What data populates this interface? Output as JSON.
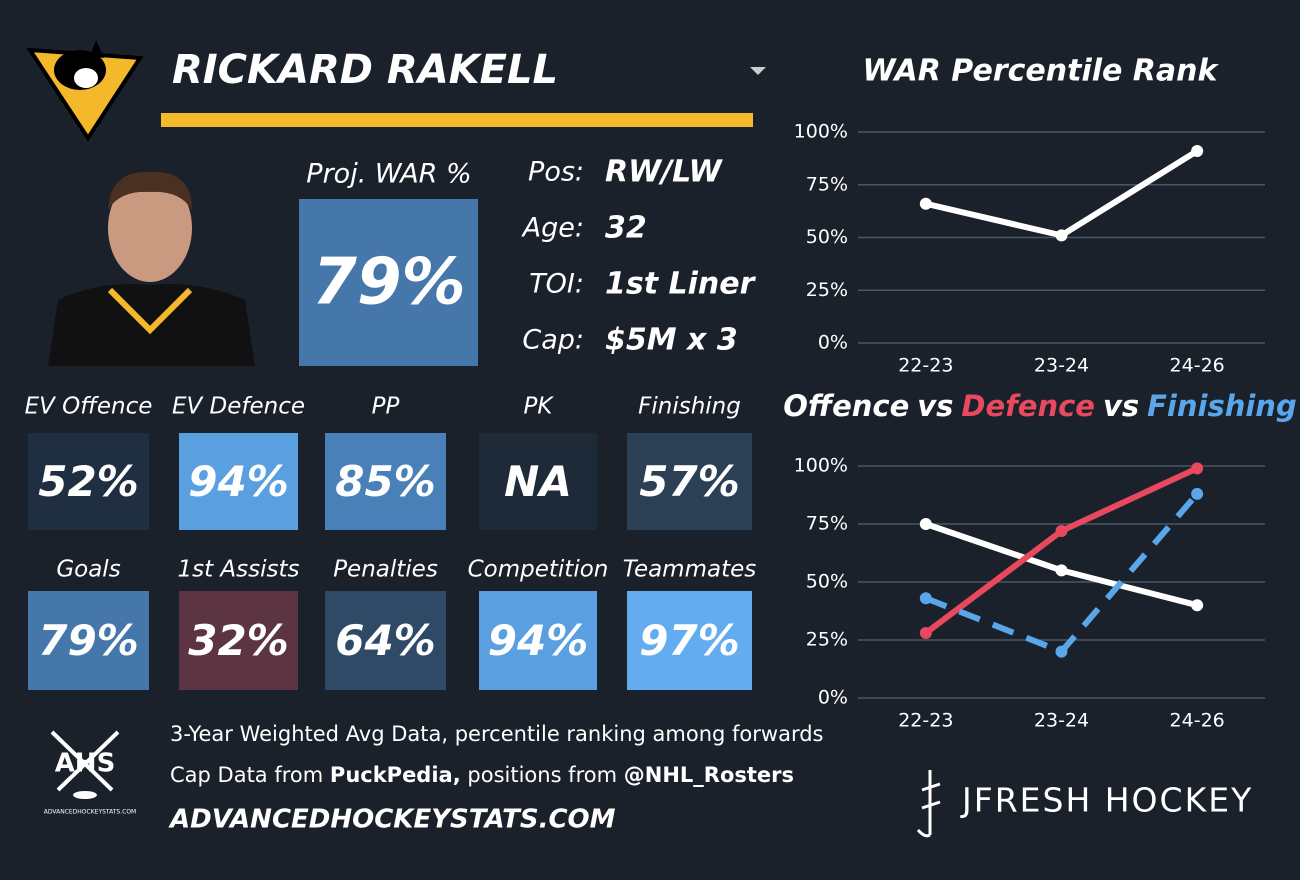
{
  "header": {
    "player": "RICKARD RAKELL"
  },
  "proj": {
    "label": "Proj. WAR %",
    "value": "79%",
    "color": "#4577aa"
  },
  "info": [
    {
      "label": "Pos:",
      "value": "RW/LW"
    },
    {
      "label": "Age:",
      "value": "32"
    },
    {
      "label": "TOI:",
      "value": "1st Liner"
    },
    {
      "label": "Cap:",
      "value": "$5M x 3"
    }
  ],
  "tiles": [
    {
      "label": "EV Offence",
      "value": "52%",
      "color": "#1f2e40"
    },
    {
      "label": "EV Defence",
      "value": "94%",
      "color": "#5aa0e0"
    },
    {
      "label": "PP",
      "value": "85%",
      "color": "#4a80b8"
    },
    {
      "label": "PK",
      "value": "NA",
      "color": "#1f2a38"
    },
    {
      "label": "Finishing",
      "value": "57%",
      "color": "#2b3f55"
    },
    {
      "label": "Goals",
      "value": "79%",
      "color": "#4577aa"
    },
    {
      "label": "1st Assists",
      "value": "32%",
      "color": "#5c3442"
    },
    {
      "label": "Penalties",
      "value": "64%",
      "color": "#2f4a66"
    },
    {
      "label": "Competition",
      "value": "94%",
      "color": "#5aa0e0"
    },
    {
      "label": "Teammates",
      "value": "97%",
      "color": "#62acef"
    }
  ],
  "footer": {
    "note": "3-Year Weighted Avg Data, percentile ranking among forwards",
    "cap_prefix": "Cap Data from",
    "cap_source": "PuckPedia,",
    "pos_prefix": "positions from",
    "pos_source": "@NHL_Rosters",
    "site": "ADVANCEDHOCKEYSTATS.COM"
  },
  "logos": {
    "ahs": "AHS",
    "ahs_sub": "ADVANCEDHOCKEYSTATS.COM",
    "jfresh": "JFRESH HOCKEY"
  },
  "chart_data": [
    {
      "type": "line",
      "title": "WAR Percentile Rank",
      "categories": [
        "22-23",
        "23-24",
        "24-26"
      ],
      "values": [
        66,
        51,
        91
      ],
      "color": "#ffffff",
      "ylim": [
        0,
        100
      ],
      "yticks": [
        {
          "value": 0,
          "label": "0%"
        },
        {
          "value": 25,
          "label": "25%"
        },
        {
          "value": 50,
          "label": "50%"
        },
        {
          "value": 75,
          "label": "75%"
        },
        {
          "value": 100,
          "label": "100%"
        }
      ],
      "grid": true
    },
    {
      "type": "line",
      "joiner": "vs",
      "categories": [
        "22-23",
        "23-24",
        "24-26"
      ],
      "series": [
        {
          "name": "Offence",
          "color": "#ffffff",
          "values": [
            75,
            55,
            40
          ]
        },
        {
          "name": "Defence",
          "color": "#e8495f",
          "values": [
            28,
            72,
            99
          ]
        },
        {
          "name": "Finishing",
          "color": "#5aa6ea",
          "values": [
            43,
            20,
            88
          ],
          "dashed": true
        }
      ],
      "ylim": [
        0,
        100
      ],
      "yticks": [
        {
          "value": 0,
          "label": "0%"
        },
        {
          "value": 25,
          "label": "25%"
        },
        {
          "value": 50,
          "label": "50%"
        },
        {
          "value": 75,
          "label": "75%"
        },
        {
          "value": 100,
          "label": "100%"
        }
      ],
      "grid": true
    }
  ]
}
